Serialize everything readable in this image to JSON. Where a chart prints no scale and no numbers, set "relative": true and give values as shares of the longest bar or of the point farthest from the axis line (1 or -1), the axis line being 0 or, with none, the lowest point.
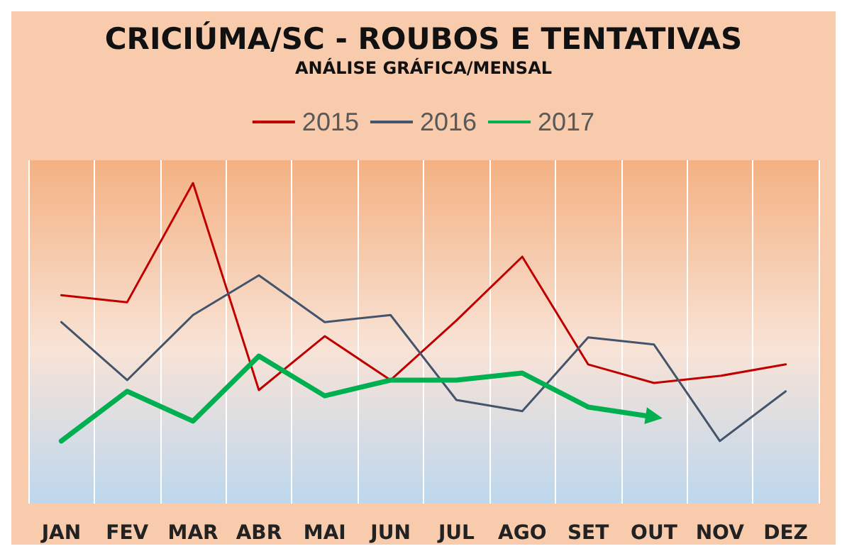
{
  "chart_data": {
    "type": "line",
    "title": "CRICIÚMA/SC - ROUBOS E TENTATIVAS",
    "subtitle": "ANÁLISE GRÁFICA/MENSAL",
    "relative": true,
    "categories": [
      "JAN",
      "FEV",
      "MAR",
      "ABR",
      "MAI",
      "JUN",
      "JUL",
      "AGO",
      "SET",
      "OUT",
      "NOV",
      "DEZ"
    ],
    "series": [
      {
        "name": "2015",
        "color": "#c00000",
        "values": [
          0.65,
          0.628,
          1,
          0.354,
          0.522,
          0.385,
          0.571,
          0.77,
          0.434,
          0.376,
          0.398,
          0.434
        ]
      },
      {
        "name": "2016",
        "color": "#44546a",
        "values": [
          0.566,
          0.385,
          0.588,
          0.712,
          0.566,
          0.588,
          0.323,
          0.288,
          0.518,
          0.496,
          0.195,
          0.35
        ]
      },
      {
        "name": "2017",
        "color": "#00b050",
        "values": [
          0.195,
          0.35,
          0.257,
          0.46,
          0.336,
          0.385,
          0.385,
          0.407,
          0.301,
          0.27,
          null,
          null
        ]
      }
    ],
    "grid": "x",
    "legend": "top",
    "marker": "none",
    "line_style": "solid"
  }
}
